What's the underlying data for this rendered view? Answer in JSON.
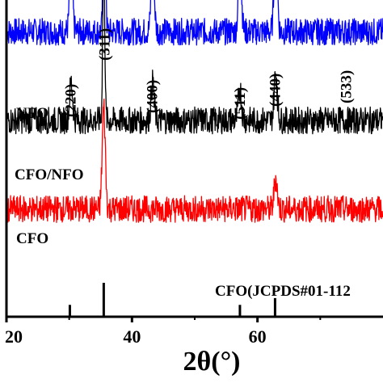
{
  "chart_data": {
    "type": "line",
    "title": "",
    "xlabel": "2θ(°)",
    "ylabel": "",
    "xlim": [
      20,
      80
    ],
    "x_ticks": [
      20,
      40,
      60
    ],
    "x_tick_labels": [
      "20",
      "40",
      "60"
    ],
    "grid": false,
    "legend": "none",
    "series": [
      {
        "name": "NFO",
        "color": "#0000ff",
        "baseline": 0.9,
        "peaks": [
          {
            "x": 30.3,
            "h": 0.2
          },
          {
            "x": 35.6,
            "h": 0.95
          },
          {
            "x": 43.3,
            "h": 0.22
          },
          {
            "x": 57.2,
            "h": 0.22
          },
          {
            "x": 62.9,
            "h": 0.3
          }
        ]
      },
      {
        "name": "CFO/NFO",
        "color": "#000000",
        "baseline": 0.62,
        "peaks": [
          {
            "x": 30.3,
            "h": 0.12
          },
          {
            "x": 35.5,
            "h": 0.55
          },
          {
            "x": 43.3,
            "h": 0.12
          },
          {
            "x": 57.2,
            "h": 0.1
          },
          {
            "x": 62.9,
            "h": 0.15
          }
        ]
      },
      {
        "name": "CFO",
        "color": "#ff0000",
        "baseline": 0.34,
        "peaks": [
          {
            "x": 35.5,
            "h": 0.32
          },
          {
            "x": 62.9,
            "h": 0.1
          }
        ]
      }
    ],
    "reference": {
      "label": "CFO(JCPDS#01-112",
      "lines": [
        {
          "x": 30.1,
          "h": 0.35
        },
        {
          "x": 35.5,
          "h": 1.0
        },
        {
          "x": 57.2,
          "h": 0.35
        },
        {
          "x": 62.8,
          "h": 0.55
        }
      ]
    },
    "annotations": [
      {
        "text": "(220)",
        "x": 30.1
      },
      {
        "text": "(311)",
        "x": 35.5
      },
      {
        "text": "(400)",
        "x": 43.1
      },
      {
        "text": "(511)",
        "x": 57.1
      },
      {
        "text": "(440)",
        "x": 62.7
      },
      {
        "text": "(533)",
        "x": 74.0
      }
    ]
  }
}
